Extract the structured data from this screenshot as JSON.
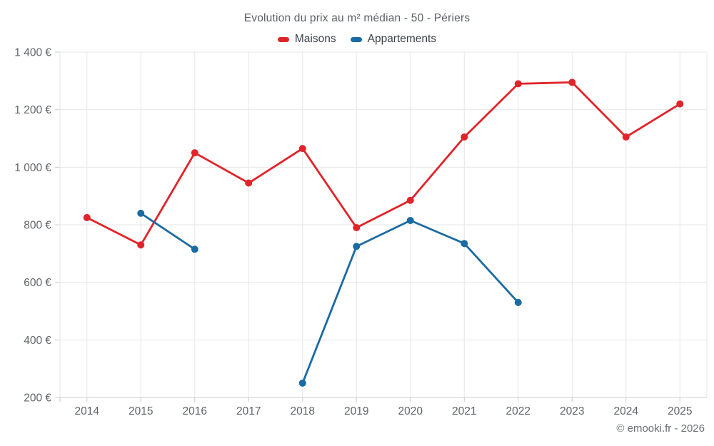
{
  "chart": {
    "title": "Evolution du prix au m² médian - 50 - Périers",
    "copyright": "© emooki.fr - 2026"
  },
  "chart_data": {
    "type": "line",
    "title": "Evolution du prix au m² médian - 50 - Périers",
    "categories": [
      "2014",
      "2015",
      "2016",
      "2017",
      "2018",
      "2019",
      "2020",
      "2021",
      "2022",
      "2023",
      "2024",
      "2025"
    ],
    "series": [
      {
        "name": "Maisons",
        "color": "#e1232a",
        "values": [
          825,
          730,
          1050,
          945,
          1065,
          790,
          885,
          1105,
          1290,
          1295,
          1105,
          1220
        ]
      },
      {
        "name": "Appartements",
        "color": "#1a6ba3",
        "values": [
          null,
          840,
          715,
          null,
          250,
          725,
          815,
          735,
          530,
          null,
          null,
          null
        ]
      }
    ],
    "xlabel": "",
    "ylabel": "",
    "ylim": [
      200,
      1400
    ],
    "ytick_step": 200,
    "ytick_labels": [
      "200 €",
      "400 €",
      "600 €",
      "800 €",
      "1 000 €",
      "1 200 €",
      "1 400 €"
    ],
    "grid": true,
    "legend_position": "top",
    "marker": "circle"
  },
  "colors": {
    "grid": "#e7e7e8",
    "axis": "#c9ccd0",
    "axis_text": "#606468",
    "background": "#ffffff"
  }
}
